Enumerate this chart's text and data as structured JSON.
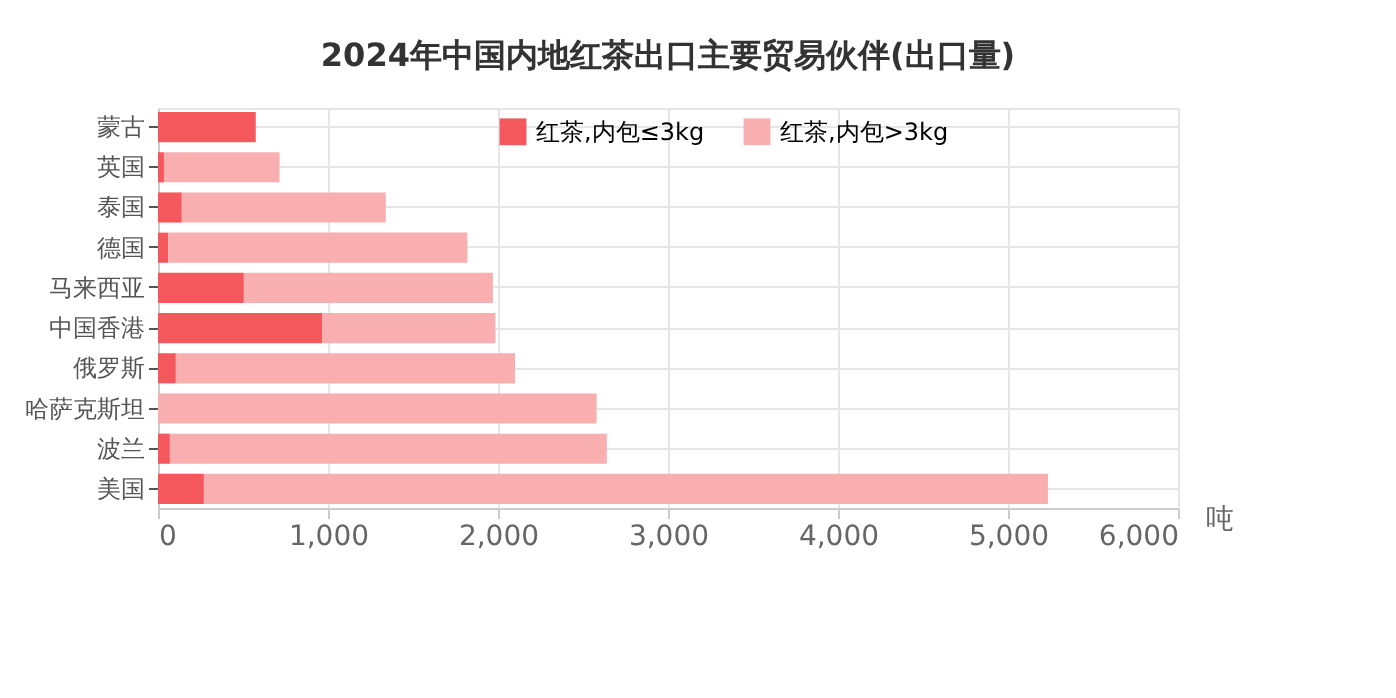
{
  "chart_data": {
    "type": "bar",
    "orientation": "horizontal",
    "stacked": true,
    "title": "2024年中国内地红茶出口主要贸易伙伴(出口量)",
    "xlabel": "吨",
    "categories": [
      "蒙古",
      "英国",
      "泰国",
      "德国",
      "马来西亚",
      "中国香港",
      "俄罗斯",
      "哈萨克斯坦",
      "波兰",
      "美国"
    ],
    "series": [
      {
        "name": "红茶,内包≤3kg",
        "color": "#f4585c",
        "values": [
          575,
          35,
          140,
          60,
          505,
          965,
          105,
          0,
          70,
          270
        ]
      },
      {
        "name": "红茶,内包>3kg",
        "color": "#f9aeb0",
        "values": [
          0,
          680,
          1200,
          1760,
          1465,
          1020,
          1995,
          2580,
          2570,
          4965
        ]
      }
    ],
    "xlim": [
      0,
      6000
    ],
    "xticks": [
      {
        "value": 0,
        "label": "0"
      },
      {
        "value": 1000,
        "label": "1,000"
      },
      {
        "value": 2000,
        "label": "2,000"
      },
      {
        "value": 3000,
        "label": "3,000"
      },
      {
        "value": 4000,
        "label": "4,000"
      },
      {
        "value": 5000,
        "label": "5,000"
      },
      {
        "value": 6000,
        "label": "6,000"
      }
    ],
    "grid": true,
    "legend": "top right"
  }
}
